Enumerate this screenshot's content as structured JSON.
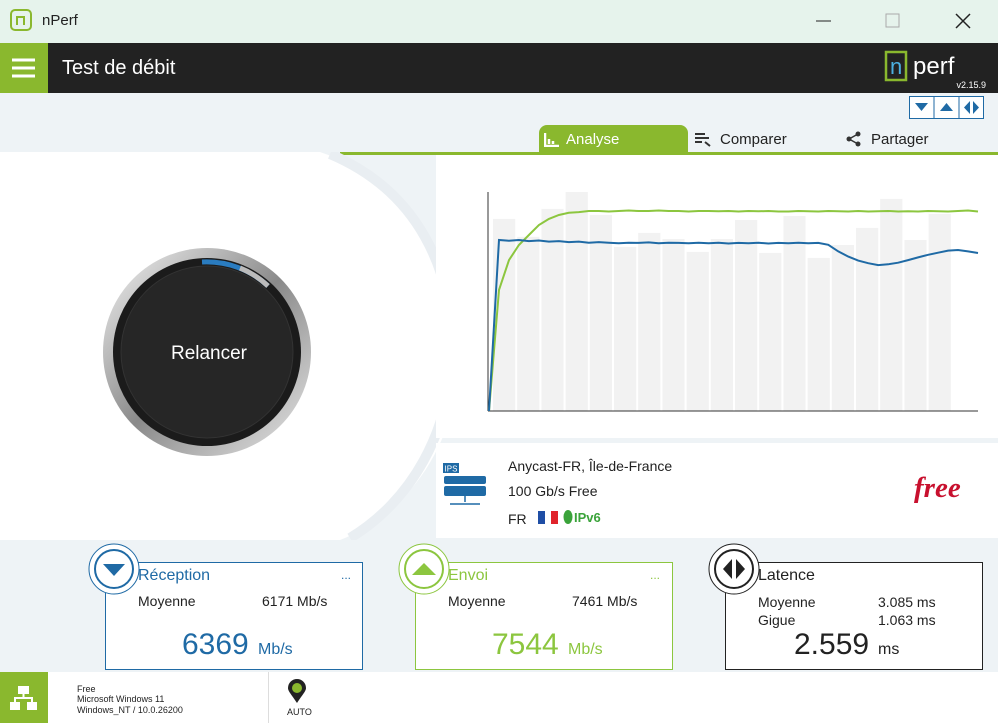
{
  "window": {
    "title": "nPerf"
  },
  "header": {
    "title": "Test de débit",
    "logo_n": "n",
    "logo_rest": "perf",
    "version": "v2.15.9"
  },
  "tabs": [
    "Analyse",
    "Comparer",
    "Partager"
  ],
  "button": "Relancer",
  "graph": {
    "ylim": [
      0,
      8300
    ],
    "bar_color": "#f2f2f2",
    "bars": [
      7280,
      6600,
      7660,
      8300,
      7430,
      6220,
      6750,
      6520,
      6030,
      6520,
      7240,
      5990,
      7390,
      5800,
      6290,
      6940,
      8040,
      6480,
      7470
    ],
    "series": [
      {
        "color": "#8cc63f",
        "values": [
          0,
          4590,
          5720,
          6290,
          6670,
          7050,
          7280,
          7430,
          7510,
          7540,
          7580,
          7580,
          7560,
          7580,
          7600,
          7580,
          7580,
          7600,
          7580,
          7580,
          7560,
          7580,
          7580,
          7570,
          7580,
          7560,
          7580,
          7570,
          7580,
          7560,
          7560,
          7580,
          7570,
          7560,
          7580,
          7570,
          7560,
          7580,
          7560,
          7570,
          7580,
          7560,
          7570,
          7560,
          7580,
          7570,
          7560,
          7580,
          7600,
          7560
        ]
      },
      {
        "color": "#1f6aa5",
        "values": [
          0,
          6480,
          6450,
          6480,
          6440,
          6460,
          6420,
          6440,
          6400,
          6420,
          6380,
          6400,
          6380,
          6360,
          6380,
          6370,
          6390,
          6360,
          6380,
          6370,
          6360,
          6380,
          6360,
          6380,
          6350,
          6370,
          6360,
          6380,
          6350,
          6370,
          6360,
          6380,
          6360,
          6370,
          6300,
          6050,
          5850,
          5700,
          5600,
          5530,
          5560,
          5620,
          5720,
          5820,
          5920,
          6000,
          6080,
          6100,
          6050,
          5990
        ]
      }
    ]
  },
  "server": {
    "badge": "IPS",
    "name": "Anycast-FR, Île-de-France",
    "isp": "100 Gb/s Free",
    "country": "FR",
    "ip": "IPv6",
    "brand": "free"
  },
  "cards": {
    "reception": {
      "title": "Réception",
      "more": "...",
      "avg_label": "Moyenne",
      "avg": "6171 Mb/s",
      "value": "6369",
      "unit": "Mb/s"
    },
    "envoi": {
      "title": "Envoi",
      "more": "...",
      "avg_label": "Moyenne",
      "avg": "7461 Mb/s",
      "value": "7544",
      "unit": "Mb/s"
    },
    "latence": {
      "title": "Latence",
      "rows": [
        [
          "Moyenne",
          "3.085 ms"
        ],
        [
          "Gigue",
          "1.063 ms"
        ]
      ],
      "value": "2.559",
      "unit": "ms"
    }
  },
  "footer": {
    "lines": [
      "Free",
      "Microsoft Windows 11",
      "Windows_NT / 10.0.26200"
    ],
    "mode": "AUTO"
  }
}
